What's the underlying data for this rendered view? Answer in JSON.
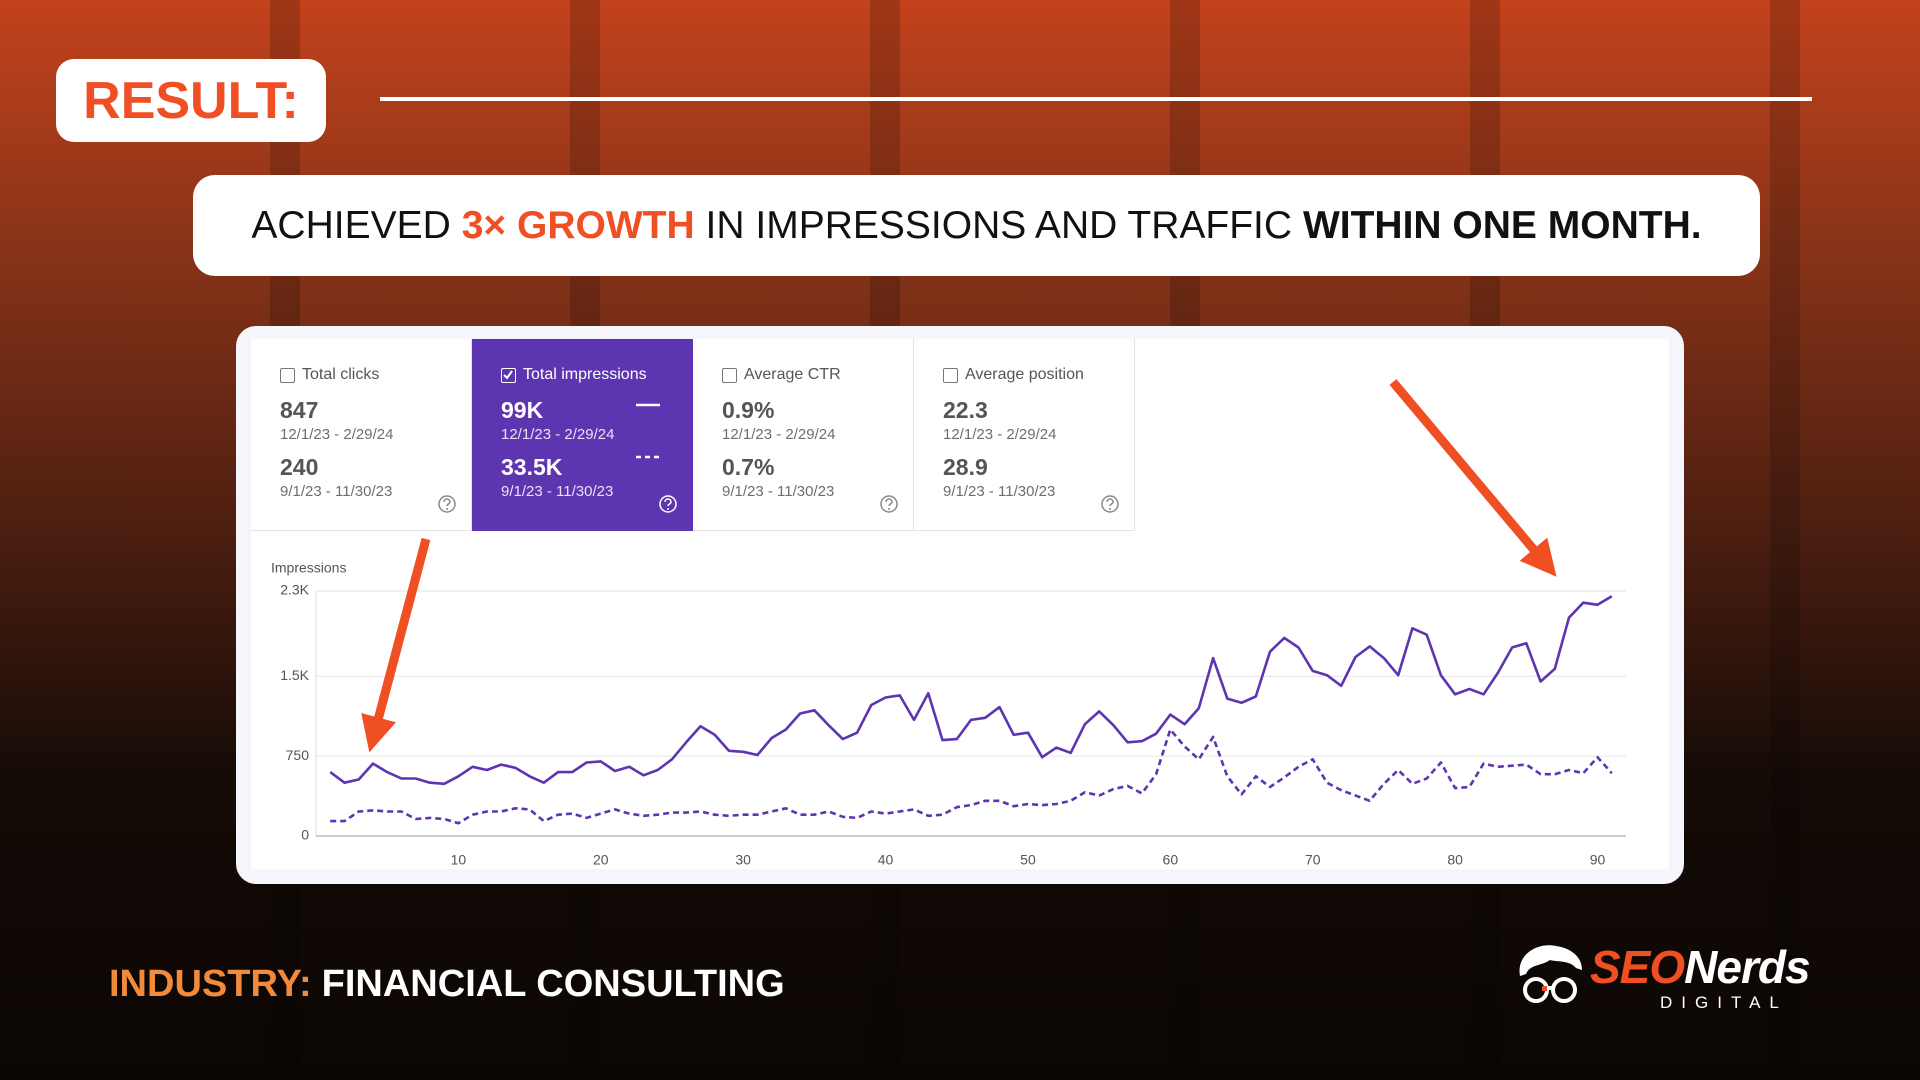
{
  "badge": "RESULT:",
  "headline": {
    "parts": [
      "ACHIEVED",
      "3× GROWTH",
      "IN IMPRESSIONS AND TRAFFIC",
      "WITHIN ONE MONTH."
    ]
  },
  "metrics": [
    {
      "label": "Total clicks",
      "value": 847,
      "range": "12/1/23 - 2/29/24",
      "prev_value": 240,
      "prev_range": "9/1/23 - 11/30/23",
      "selected": false
    },
    {
      "label": "Total impressions",
      "value": "99K",
      "range": "12/1/23 - 2/29/24",
      "prev_value": "33.5K",
      "prev_range": "9/1/23 - 11/30/23",
      "selected": true
    },
    {
      "label": "Average CTR",
      "value": "0.9%",
      "range": "12/1/23 - 2/29/24",
      "prev_value": "0.7%",
      "prev_range": "9/1/23 - 11/30/23",
      "selected": false
    },
    {
      "label": "Average position",
      "value": 22.3,
      "range": "12/1/23 - 2/29/24",
      "prev_value": 28.9,
      "prev_range": "9/1/23 - 11/30/23",
      "selected": false
    }
  ],
  "chart_data": {
    "type": "line",
    "y_label": "Impressions",
    "x": [
      1,
      2,
      3,
      4,
      5,
      6,
      7,
      8,
      9,
      10,
      11,
      12,
      13,
      14,
      15,
      16,
      17,
      18,
      19,
      20,
      21,
      22,
      23,
      24,
      25,
      26,
      27,
      28,
      29,
      30,
      31,
      32,
      33,
      34,
      35,
      36,
      37,
      38,
      39,
      40,
      41,
      42,
      43,
      44,
      45,
      46,
      47,
      48,
      49,
      50,
      51,
      52,
      53,
      54,
      55,
      56,
      57,
      58,
      59,
      60,
      61,
      62,
      63,
      64,
      65,
      66,
      67,
      68,
      69,
      70,
      71,
      72,
      73,
      74,
      75,
      76,
      77,
      78,
      79,
      80,
      81,
      82,
      83,
      84,
      85,
      86,
      87,
      88,
      89,
      90,
      91
    ],
    "series": [
      {
        "color": "#5e35b1",
        "style": "solid",
        "values": [
          600,
          500,
          530,
          680,
          600,
          540,
          540,
          500,
          490,
          560,
          650,
          620,
          670,
          640,
          560,
          500,
          600,
          600,
          690,
          700,
          610,
          650,
          570,
          620,
          720,
          880,
          1030,
          950,
          800,
          790,
          760,
          920,
          1000,
          1150,
          1180,
          1040,
          910,
          970,
          1230,
          1300,
          1320,
          1090,
          1340,
          900,
          910,
          1090,
          1110,
          1210,
          950,
          970,
          740,
          830,
          780,
          1050,
          1170,
          1040,
          880,
          890,
          960,
          1140,
          1050,
          1200,
          1670,
          1290,
          1250,
          1310,
          1730,
          1860,
          1770,
          1550,
          1510,
          1410,
          1680,
          1780,
          1670,
          1510,
          1950,
          1890,
          1510,
          1330,
          1380,
          1330,
          1530,
          1770,
          1810,
          1450,
          1570,
          2050,
          2190,
          2170,
          2250
        ]
      },
      {
        "color": "#5e35b1",
        "style": "dashed",
        "values": [
          140,
          140,
          230,
          240,
          230,
          230,
          160,
          170,
          160,
          120,
          200,
          230,
          230,
          260,
          250,
          140,
          200,
          210,
          170,
          210,
          250,
          210,
          190,
          200,
          220,
          220,
          230,
          200,
          190,
          200,
          200,
          230,
          260,
          200,
          200,
          230,
          180,
          170,
          230,
          210,
          230,
          250,
          190,
          200,
          270,
          290,
          330,
          330,
          280,
          300,
          290,
          300,
          330,
          410,
          380,
          440,
          470,
          400,
          580,
          1000,
          840,
          720,
          930,
          560,
          390,
          560,
          460,
          550,
          650,
          720,
          500,
          430,
          380,
          330,
          490,
          620,
          490,
          540,
          690,
          450,
          460,
          680,
          650,
          660,
          670,
          580,
          580,
          620,
          590,
          740,
          590
        ]
      }
    ],
    "xlim": [
      0,
      92
    ],
    "xticks": [
      10,
      20,
      30,
      40,
      50,
      60,
      70,
      80,
      90
    ],
    "ylim": [
      0,
      2300
    ],
    "yticks": [
      0,
      750,
      {
        "value": 1500,
        "label": "1.5K"
      },
      {
        "value": 2300,
        "label": "2.3K"
      }
    ],
    "grid": true
  },
  "footer": {
    "label": "INDUSTRY:",
    "value": "FINANCIAL CONSULTING"
  },
  "logo": {
    "brand": "SEO",
    "brand2": "Nerds",
    "tagline": "DIGITAL"
  }
}
